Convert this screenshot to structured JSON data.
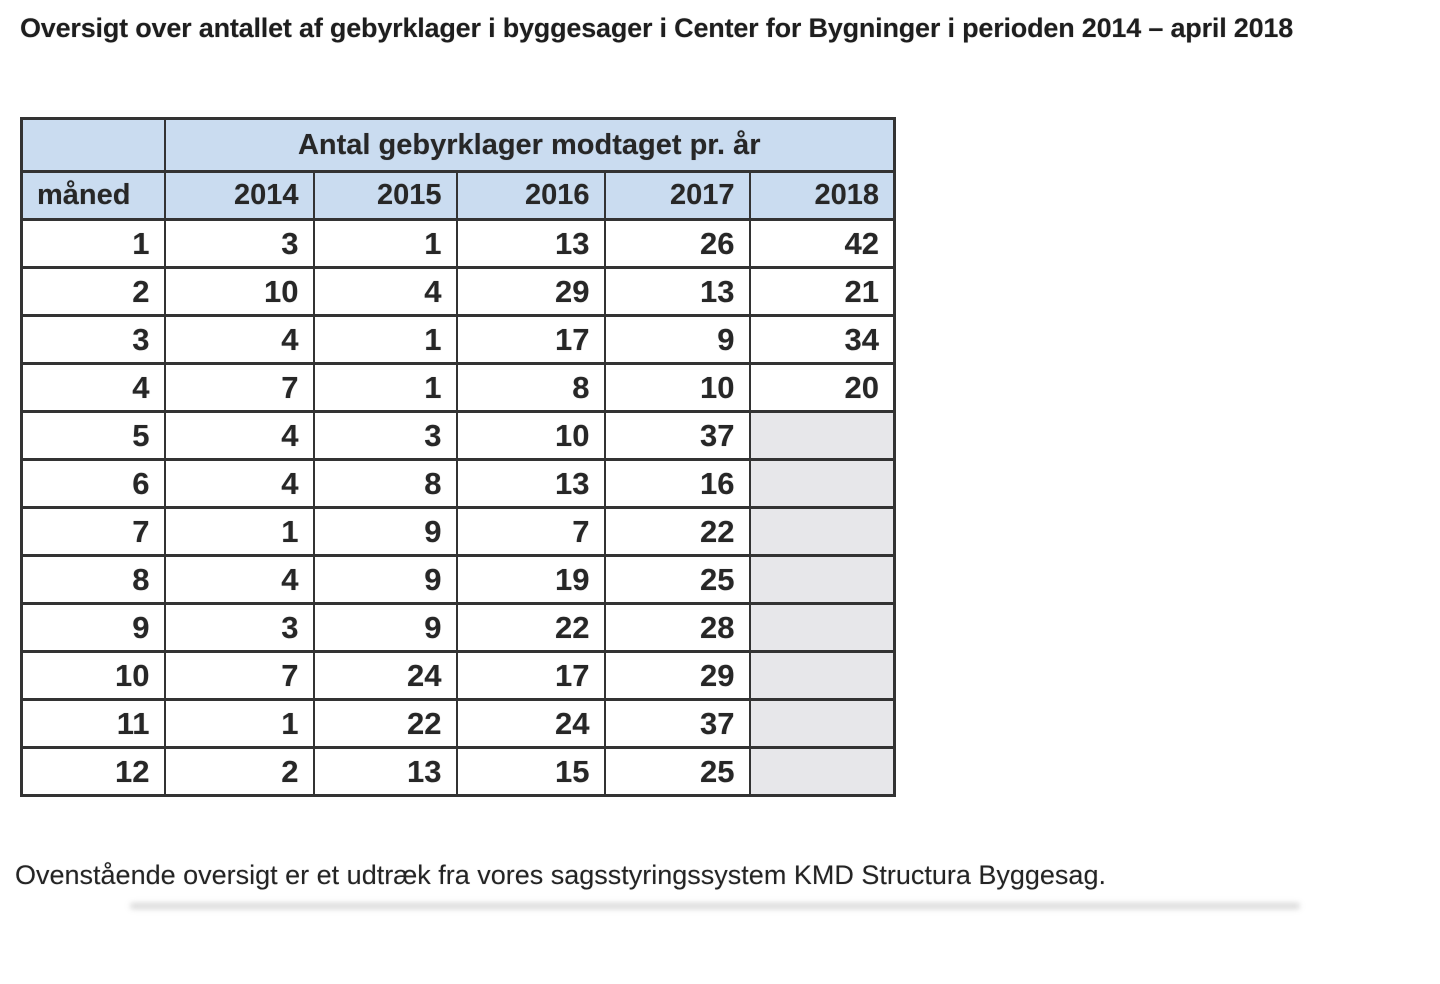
{
  "document": {
    "title": "Oversigt over antallet af gebyrklager i byggesager i Center for Bygninger i perioden 2014 – april 2018",
    "footer_note": "Ovenstående oversigt er et udtræk fra vores sagsstyringssystem KMD Structura Byggesag."
  },
  "colors": {
    "header_fill": "#cadcf0",
    "empty_cell_fill": "#e7e7ea",
    "border": "#333333",
    "text": "#272727",
    "page_background": "#ffffff"
  },
  "chart_data": {
    "type": "table",
    "title": "Antal gebyrklager modtaget pr. år",
    "row_header_label": "måned",
    "columns": [
      "2014",
      "2015",
      "2016",
      "2017",
      "2018"
    ],
    "rows": [
      {
        "month": 1,
        "values": [
          3,
          1,
          13,
          26,
          42
        ]
      },
      {
        "month": 2,
        "values": [
          10,
          4,
          29,
          13,
          21
        ]
      },
      {
        "month": 3,
        "values": [
          4,
          1,
          17,
          9,
          34
        ]
      },
      {
        "month": 4,
        "values": [
          7,
          1,
          8,
          10,
          20
        ]
      },
      {
        "month": 5,
        "values": [
          4,
          3,
          10,
          37,
          null
        ]
      },
      {
        "month": 6,
        "values": [
          4,
          8,
          13,
          16,
          null
        ]
      },
      {
        "month": 7,
        "values": [
          1,
          9,
          7,
          22,
          null
        ]
      },
      {
        "month": 8,
        "values": [
          4,
          9,
          19,
          25,
          null
        ]
      },
      {
        "month": 9,
        "values": [
          3,
          9,
          22,
          28,
          null
        ]
      },
      {
        "month": 10,
        "values": [
          7,
          24,
          17,
          29,
          null
        ]
      },
      {
        "month": 11,
        "values": [
          1,
          22,
          24,
          37,
          null
        ]
      },
      {
        "month": 12,
        "values": [
          2,
          13,
          15,
          25,
          null
        ]
      }
    ]
  }
}
